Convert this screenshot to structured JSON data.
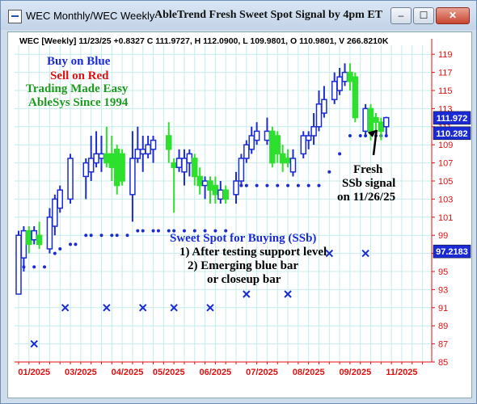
{
  "window": {
    "title": "WEC Monthly/WEC Weekly",
    "signal_title": "AbleTrend Fresh Sweet Spot Signal by 4pm ET",
    "buttons": [
      "–",
      "☐",
      "✕"
    ]
  },
  "chart": {
    "header": "WEC [Weekly] 11/23/25 +0.8327 C 111.9727, H 112.0900, L 109.9801, O 110.9801, V 266.8210K",
    "ad_lines": [
      {
        "text": "Buy on Blue",
        "color": "#1a2bd6"
      },
      {
        "text": "Sell on Red",
        "color": "#e01010"
      },
      {
        "text": "Trading Made Easy",
        "color": "#1e9a1e"
      },
      {
        "text": "AbleSys Since 1994",
        "color": "#1e9a1e"
      }
    ],
    "sweet_spot": {
      "title": "Sweet Spot for Buying (SSb)",
      "line1": "1) After testing support level",
      "line2": "2) Emerging blue bar",
      "line3": "or closeup bar"
    },
    "fresh": {
      "line1": "Fresh",
      "line2": "SSb signal",
      "line3": "on 11/26/25"
    },
    "price_labels": [
      {
        "value": "111.972",
        "price": 111.972,
        "bg": "#1a2bd6"
      },
      {
        "value": "110.282",
        "price": 110.282,
        "bg": "#1a2bd6"
      },
      {
        "value": "97.2183",
        "price": 97.2183,
        "bg": "#1a2bd6"
      }
    ],
    "colors": {
      "grid": "#c4ecec",
      "axis_text": "#e01010",
      "up": "#1a2bd6",
      "down": "#2ee02e",
      "stop": "#1a2bd6",
      "arrow": "#000000"
    }
  },
  "chart_data": {
    "type": "candlestick",
    "y_ticks": [
      85,
      87,
      89,
      91,
      93,
      95,
      97,
      99,
      101,
      103,
      105,
      107,
      109,
      111,
      113,
      115,
      117,
      119
    ],
    "ylim": [
      85,
      120
    ],
    "x_labels": [
      "01/2025",
      "03/2025",
      "04/2025",
      "05/2025",
      "06/2025",
      "07/2025",
      "08/2025",
      "09/2025",
      "11/2025"
    ],
    "x_label_weeks": [
      3,
      12,
      21,
      29,
      38,
      47,
      56,
      65,
      74
    ],
    "weeks": 80,
    "bars": [
      {
        "w": 0,
        "o": 92.5,
        "c": 99.0,
        "h": 99.5,
        "l": 92.5,
        "t": "up"
      },
      {
        "w": 1,
        "o": 96.5,
        "c": 99.5,
        "h": 100.0,
        "l": 95.0,
        "t": "up"
      },
      {
        "w": 2,
        "o": 99.5,
        "c": 98.0,
        "h": 100.0,
        "l": 97.0,
        "t": "down"
      },
      {
        "w": 3,
        "o": 98.5,
        "c": 99.5,
        "h": 100.0,
        "l": 98.0,
        "t": "up"
      },
      {
        "w": 4,
        "o": 99.0,
        "c": 98.0,
        "h": 100.5,
        "l": 97.5,
        "t": "down"
      },
      {
        "w": 6,
        "o": 97.5,
        "c": 101.0,
        "h": 102.0,
        "l": 97.0,
        "t": "up"
      },
      {
        "w": 7,
        "o": 100.0,
        "c": 103.0,
        "h": 103.5,
        "l": 99.0,
        "t": "up"
      },
      {
        "w": 8,
        "o": 102.0,
        "c": 104.0,
        "h": 104.5,
        "l": 101.5,
        "t": "up"
      },
      {
        "w": 10,
        "o": 103.0,
        "c": 107.5,
        "h": 108.0,
        "l": 102.5,
        "t": "up"
      },
      {
        "w": 13,
        "o": 105.5,
        "c": 107.0,
        "h": 107.5,
        "l": 103.0,
        "t": "up"
      },
      {
        "w": 14,
        "o": 106.0,
        "c": 107.5,
        "h": 110.0,
        "l": 105.0,
        "t": "up"
      },
      {
        "w": 15,
        "o": 107.0,
        "c": 108.0,
        "h": 110.5,
        "l": 106.5,
        "t": "up"
      },
      {
        "w": 16,
        "o": 107.5,
        "c": 108.0,
        "h": 110.0,
        "l": 106.0,
        "t": "up"
      },
      {
        "w": 17,
        "o": 108.0,
        "c": 107.0,
        "h": 111.0,
        "l": 106.5,
        "t": "down"
      },
      {
        "w": 18,
        "o": 108.0,
        "c": 106.5,
        "h": 110.0,
        "l": 105.0,
        "t": "down"
      },
      {
        "w": 19,
        "o": 108.5,
        "c": 104.5,
        "h": 109.0,
        "l": 103.5,
        "t": "down"
      },
      {
        "w": 20,
        "o": 108.0,
        "c": 105.0,
        "h": 108.5,
        "l": 104.5,
        "t": "down"
      },
      {
        "w": 22,
        "o": 103.5,
        "c": 107.5,
        "h": 110.5,
        "l": 100.5,
        "t": "up"
      },
      {
        "w": 23,
        "o": 107.5,
        "c": 108.5,
        "h": 111.0,
        "l": 107.0,
        "t": "up"
      },
      {
        "w": 24,
        "o": 108.0,
        "c": 108.5,
        "h": 110.0,
        "l": 106.0,
        "t": "up"
      },
      {
        "w": 25,
        "o": 108.0,
        "c": 109.0,
        "h": 110.0,
        "l": 107.5,
        "t": "up"
      },
      {
        "w": 26,
        "o": 108.5,
        "c": 109.5,
        "h": 110.0,
        "l": 107.0,
        "t": "up"
      },
      {
        "w": 29,
        "o": 110.0,
        "c": 108.5,
        "h": 111.5,
        "l": 107.0,
        "t": "down"
      },
      {
        "w": 30,
        "o": 107.0,
        "c": 106.5,
        "h": 107.5,
        "l": 101.5,
        "t": "down"
      },
      {
        "w": 31,
        "o": 106.5,
        "c": 107.5,
        "h": 108.5,
        "l": 106.0,
        "t": "up"
      },
      {
        "w": 32,
        "o": 106.0,
        "c": 107.5,
        "h": 108.5,
        "l": 104.5,
        "t": "up"
      },
      {
        "w": 33,
        "o": 107.0,
        "c": 108.0,
        "h": 108.5,
        "l": 105.5,
        "t": "up"
      },
      {
        "w": 34,
        "o": 107.5,
        "c": 105.5,
        "h": 108.0,
        "l": 104.5,
        "t": "down"
      },
      {
        "w": 35,
        "o": 105.5,
        "c": 104.5,
        "h": 106.5,
        "l": 103.5,
        "t": "down"
      },
      {
        "w": 36,
        "o": 104.5,
        "c": 105.0,
        "h": 105.5,
        "l": 103.0,
        "t": "up"
      },
      {
        "w": 37,
        "o": 105.0,
        "c": 104.0,
        "h": 105.5,
        "l": 102.5,
        "t": "down"
      },
      {
        "w": 38,
        "o": 104.5,
        "c": 103.5,
        "h": 105.5,
        "l": 102.5,
        "t": "down"
      },
      {
        "w": 39,
        "o": 103.0,
        "c": 104.0,
        "h": 105.0,
        "l": 102.5,
        "t": "up"
      },
      {
        "w": 40,
        "o": 104.0,
        "c": 103.0,
        "h": 104.5,
        "l": 102.5,
        "t": "down"
      },
      {
        "w": 42,
        "o": 103.5,
        "c": 105.0,
        "h": 106.0,
        "l": 102.5,
        "t": "up"
      },
      {
        "w": 43,
        "o": 105.0,
        "c": 107.5,
        "h": 108.0,
        "l": 104.5,
        "t": "up"
      },
      {
        "w": 44,
        "o": 107.5,
        "c": 109.0,
        "h": 109.5,
        "l": 107.0,
        "t": "up"
      },
      {
        "w": 45,
        "o": 108.5,
        "c": 110.0,
        "h": 111.0,
        "l": 108.0,
        "t": "up"
      },
      {
        "w": 46,
        "o": 109.5,
        "c": 110.5,
        "h": 111.5,
        "l": 109.0,
        "t": "up"
      },
      {
        "w": 48,
        "o": 109.5,
        "c": 110.5,
        "h": 112.0,
        "l": 109.0,
        "t": "up"
      },
      {
        "w": 49,
        "o": 110.5,
        "c": 107.0,
        "h": 111.0,
        "l": 106.5,
        "t": "down"
      },
      {
        "w": 50,
        "o": 110.0,
        "c": 108.0,
        "h": 110.5,
        "l": 107.0,
        "t": "down"
      },
      {
        "w": 51,
        "o": 108.0,
        "c": 107.0,
        "h": 109.0,
        "l": 106.0,
        "t": "down"
      },
      {
        "w": 52,
        "o": 107.5,
        "c": 107.0,
        "h": 108.5,
        "l": 106.5,
        "t": "down"
      },
      {
        "w": 53,
        "o": 106.0,
        "c": 107.5,
        "h": 108.5,
        "l": 105.5,
        "t": "up"
      },
      {
        "w": 55,
        "o": 108.0,
        "c": 110.0,
        "h": 110.5,
        "l": 107.5,
        "t": "up"
      },
      {
        "w": 56,
        "o": 109.5,
        "c": 110.0,
        "h": 110.5,
        "l": 108.5,
        "t": "up"
      },
      {
        "w": 57,
        "o": 110.0,
        "c": 111.0,
        "h": 112.5,
        "l": 109.0,
        "t": "up"
      },
      {
        "w": 58,
        "o": 111.0,
        "c": 113.5,
        "h": 115.0,
        "l": 110.5,
        "t": "up"
      },
      {
        "w": 59,
        "o": 112.5,
        "c": 114.0,
        "h": 115.5,
        "l": 112.0,
        "t": "up"
      },
      {
        "w": 61,
        "o": 114.0,
        "c": 116.0,
        "h": 117.0,
        "l": 113.5,
        "t": "up"
      },
      {
        "w": 62,
        "o": 115.0,
        "c": 116.5,
        "h": 117.5,
        "l": 114.5,
        "t": "up"
      },
      {
        "w": 63,
        "o": 116.0,
        "c": 117.0,
        "h": 118.0,
        "l": 115.5,
        "t": "up"
      },
      {
        "w": 64,
        "o": 117.0,
        "c": 116.0,
        "h": 118.0,
        "l": 115.0,
        "t": "down"
      },
      {
        "w": 65,
        "o": 116.5,
        "c": 112.0,
        "h": 117.0,
        "l": 111.5,
        "t": "down"
      },
      {
        "w": 67,
        "o": 110.5,
        "c": 113.0,
        "h": 113.5,
        "l": 110.0,
        "t": "up"
      },
      {
        "w": 68,
        "o": 113.0,
        "c": 110.5,
        "h": 113.5,
        "l": 109.5,
        "t": "down"
      },
      {
        "w": 69,
        "o": 112.0,
        "c": 111.5,
        "h": 112.5,
        "l": 110.5,
        "t": "down"
      },
      {
        "w": 70,
        "o": 111.5,
        "c": 110.5,
        "h": 112.0,
        "l": 109.5,
        "t": "down"
      },
      {
        "w": 71,
        "o": 111.0,
        "c": 112.0,
        "h": 112.1,
        "l": 109.98,
        "t": "up"
      }
    ],
    "stops": [
      {
        "w": 0,
        "p": 95.5
      },
      {
        "w": 1,
        "p": 95.5
      },
      {
        "w": 3,
        "p": 95.5
      },
      {
        "w": 5,
        "p": 95.5
      },
      {
        "w": 7,
        "p": 97.0
      },
      {
        "w": 8,
        "p": 97.5
      },
      {
        "w": 10,
        "p": 98.0
      },
      {
        "w": 11,
        "p": 98.0
      },
      {
        "w": 13,
        "p": 99.0
      },
      {
        "w": 14,
        "p": 99.0
      },
      {
        "w": 16,
        "p": 99.0
      },
      {
        "w": 18,
        "p": 99.0
      },
      {
        "w": 19,
        "p": 99.0
      },
      {
        "w": 21,
        "p": 99.0
      },
      {
        "w": 23,
        "p": 99.5
      },
      {
        "w": 24,
        "p": 99.5
      },
      {
        "w": 26,
        "p": 99.5
      },
      {
        "w": 27,
        "p": 99.5
      },
      {
        "w": 29,
        "p": 99.5
      },
      {
        "w": 30,
        "p": 99.5
      },
      {
        "w": 32,
        "p": 99.5
      },
      {
        "w": 34,
        "p": 99.5
      },
      {
        "w": 36,
        "p": 99.5
      },
      {
        "w": 38,
        "p": 99.5
      },
      {
        "w": 40,
        "p": 99.5
      },
      {
        "w": 43,
        "p": 104.5
      },
      {
        "w": 44,
        "p": 104.5
      },
      {
        "w": 46,
        "p": 104.5
      },
      {
        "w": 48,
        "p": 104.5
      },
      {
        "w": 50,
        "p": 104.5
      },
      {
        "w": 52,
        "p": 104.5
      },
      {
        "w": 54,
        "p": 104.5
      },
      {
        "w": 56,
        "p": 104.5
      },
      {
        "w": 58,
        "p": 104.5
      },
      {
        "w": 60,
        "p": 106.0
      },
      {
        "w": 62,
        "p": 108.0
      },
      {
        "w": 64,
        "p": 110.0
      },
      {
        "w": 66,
        "p": 110.0
      },
      {
        "w": 67,
        "p": 110.0
      },
      {
        "w": 69,
        "p": 110.0
      },
      {
        "w": 70,
        "p": 110.0
      },
      {
        "w": 71,
        "p": 110.0
      }
    ],
    "x_marks": [
      {
        "w": 3,
        "p": 87.0
      },
      {
        "w": 9,
        "p": 91.0
      },
      {
        "w": 17,
        "p": 91.0
      },
      {
        "w": 24,
        "p": 91.0
      },
      {
        "w": 30,
        "p": 91.0
      },
      {
        "w": 37,
        "p": 91.0
      },
      {
        "w": 44,
        "p": 92.5
      },
      {
        "w": 52,
        "p": 92.5
      },
      {
        "w": 60,
        "p": 97.0
      },
      {
        "w": 67,
        "p": 97.0
      }
    ]
  }
}
